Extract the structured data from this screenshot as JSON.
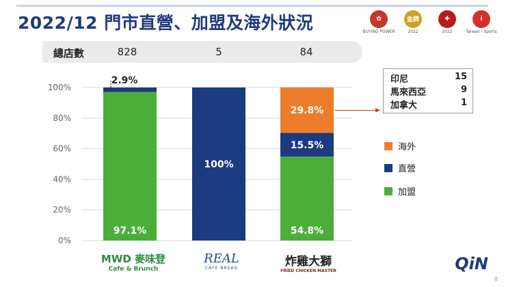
{
  "header": {
    "title": "2022/12 門市直營、加盟及海外狀況"
  },
  "badges": [
    {
      "name": "coffee-award-badge",
      "label": "BUYING POWER",
      "color": "#c0392b",
      "glyph": "✿"
    },
    {
      "name": "gold-medal-badge",
      "label": "2022",
      "color": "#c9a227",
      "glyph": "金牌"
    },
    {
      "name": "national-brand-badge",
      "label": "2022",
      "color": "#b71c1c",
      "glyph": "✚"
    },
    {
      "name": "taiwan-sports-badge",
      "label": "Taiwan i Sports",
      "color": "#d32f2f",
      "glyph": "i"
    }
  ],
  "stores": {
    "label": "總店數",
    "values": [
      "828",
      "5",
      "84"
    ]
  },
  "countries": [
    {
      "name": "印尼",
      "count": "15"
    },
    {
      "name": "馬來西亞",
      "count": "9"
    },
    {
      "name": "加拿大",
      "count": "1"
    }
  ],
  "legend": [
    {
      "label": "海外",
      "color": "#ee7d2b"
    },
    {
      "label": "直營",
      "color": "#1b3a80"
    },
    {
      "label": "加盟",
      "color": "#4cae3a"
    }
  ],
  "brands": [
    {
      "name": "mwd-logo",
      "line1": "MWD 麥味登",
      "line2": "Cafe & Brunch"
    },
    {
      "name": "real-logo",
      "line1": "REAL",
      "line2": "CAFE·BREAD"
    },
    {
      "name": "fried-chicken-master-logo",
      "line1": "炸雞大獅",
      "line2": "FRIED CHICKEN MASTER"
    }
  ],
  "footer": {
    "brand": "QiN",
    "page": "8"
  },
  "chart_data": {
    "type": "bar",
    "stacked": true,
    "categories": [
      "MWD 麥味登",
      "REAL",
      "炸雞大獅"
    ],
    "series": [
      {
        "name": "加盟",
        "color": "#4cae3a",
        "values": [
          97.1,
          0,
          54.8
        ]
      },
      {
        "name": "直營",
        "color": "#1b3a80",
        "values": [
          2.9,
          100,
          15.5
        ]
      },
      {
        "name": "海外",
        "color": "#ee7d2b",
        "values": [
          0,
          0,
          29.8
        ]
      }
    ],
    "data_labels": [
      [
        {
          "series": 0,
          "text": "97.1%"
        },
        {
          "series": 1,
          "text": "2.9%"
        }
      ],
      [
        {
          "series": 1,
          "text": "100%"
        }
      ],
      [
        {
          "series": 0,
          "text": "54.8%"
        },
        {
          "series": 1,
          "text": "15.5%"
        },
        {
          "series": 2,
          "text": "29.8%"
        }
      ]
    ],
    "yticks": [
      "0%",
      "20%",
      "40%",
      "60%",
      "80%",
      "100%"
    ],
    "ylim": [
      0,
      100
    ],
    "grid": true
  }
}
